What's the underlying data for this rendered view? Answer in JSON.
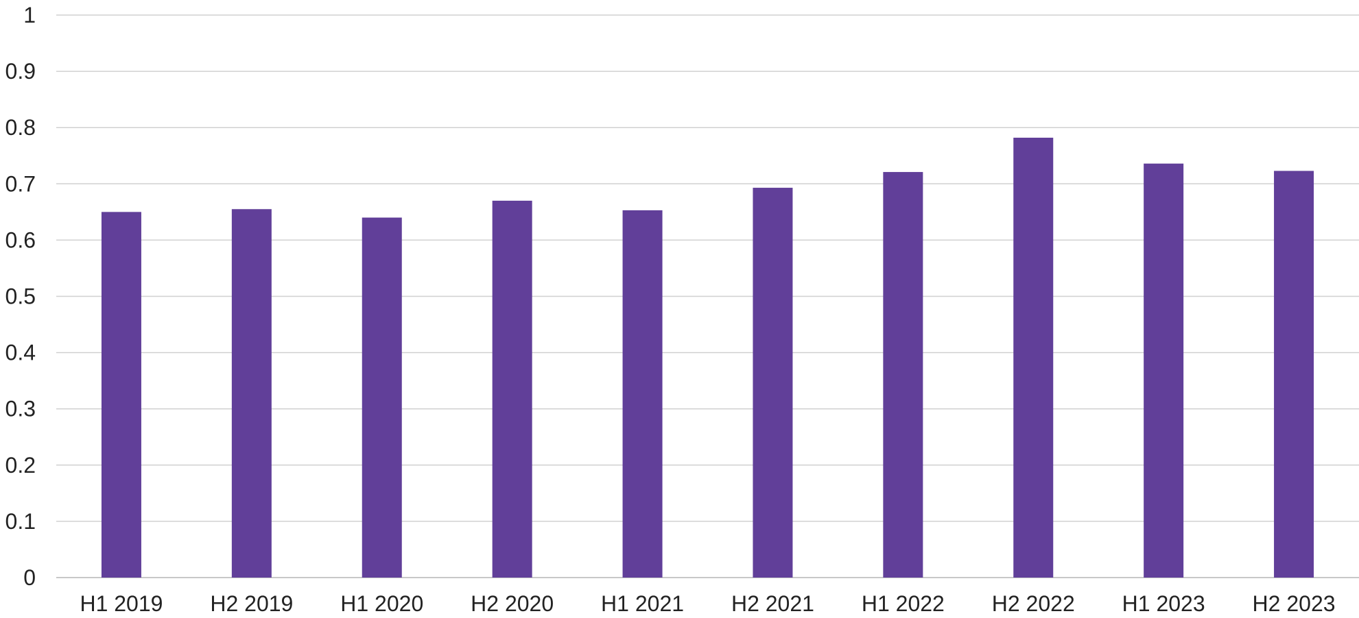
{
  "chart_data": {
    "type": "bar",
    "title": "",
    "xlabel": "",
    "ylabel": "",
    "categories": [
      "H1 2019",
      "H2 2019",
      "H1 2020",
      "H2 2020",
      "H1 2021",
      "H2 2021",
      "H1 2022",
      "H2 2022",
      "H1 2023",
      "H2 2023"
    ],
    "values": [
      0.65,
      0.655,
      0.64,
      0.67,
      0.653,
      0.693,
      0.721,
      0.782,
      0.736,
      0.723
    ],
    "ylim": [
      0,
      1
    ],
    "yticks": [
      "0",
      "0.1",
      "0.2",
      "0.3",
      "0.4",
      "0.5",
      "0.6",
      "0.7",
      "0.8",
      "0.9",
      "1"
    ],
    "grid": true,
    "legend": "none",
    "colors": {
      "bar": "#613f99",
      "gridline": "#d0d0d0",
      "text": "#222222"
    }
  }
}
